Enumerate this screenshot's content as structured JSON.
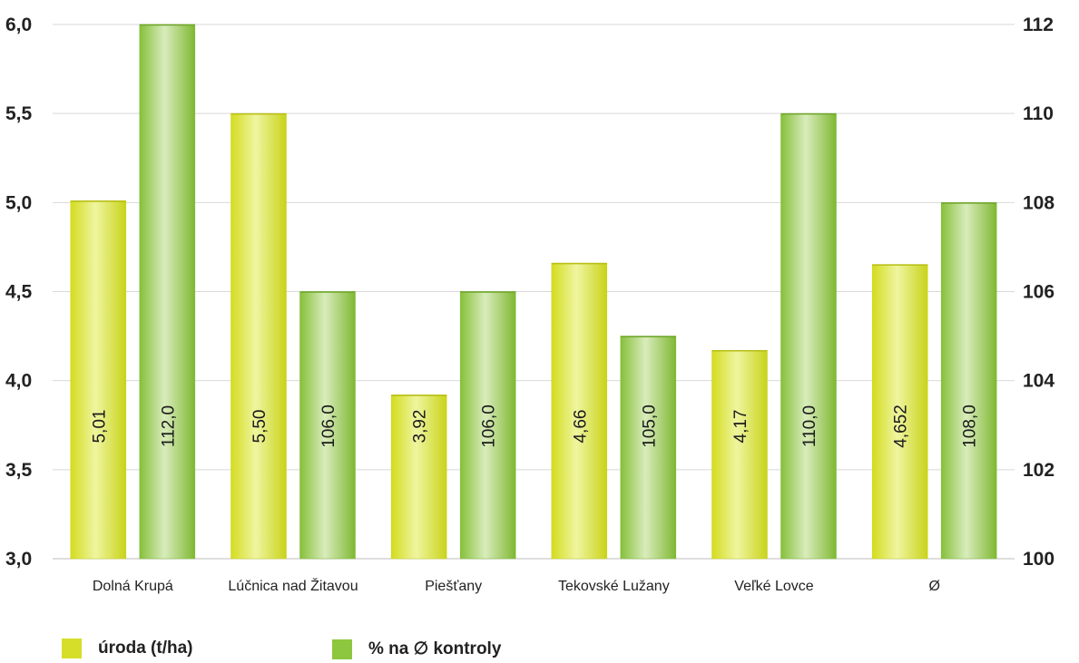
{
  "chart_data": {
    "type": "bar",
    "categories": [
      "Dolná Krupá",
      "Lúčnica nad Žitavou",
      "Piešťany",
      "Tekovské Lužany",
      "Veľké Lovce",
      "Ø"
    ],
    "series": [
      {
        "name": "úroda (t/ha)",
        "axis": "left",
        "color": "#d6de2a",
        "values": [
          5.01,
          5.5,
          3.92,
          4.66,
          4.17,
          4.652
        ],
        "labels": [
          "5,01",
          "5,50",
          "3,92",
          "4,66",
          "4,17",
          "4,652"
        ]
      },
      {
        "name": "% na ∅ kontroly",
        "axis": "right",
        "color": "#8dc63f",
        "values": [
          112.0,
          106.0,
          106.0,
          105.0,
          110.0,
          108.0
        ],
        "labels": [
          "112,0",
          "106,0",
          "106,0",
          "105,0",
          "110,0",
          "108,0"
        ]
      }
    ],
    "y_left": {
      "min": 3.0,
      "max": 6.0,
      "ticks": [
        "3,0",
        "3,5",
        "4,0",
        "4,5",
        "5,0",
        "5,5",
        "6,0"
      ]
    },
    "y_right": {
      "min": 100,
      "max": 112,
      "ticks": [
        "100",
        "102",
        "104",
        "106",
        "108",
        "110",
        "112"
      ]
    },
    "grid": true,
    "legend_position": "bottom-left"
  }
}
